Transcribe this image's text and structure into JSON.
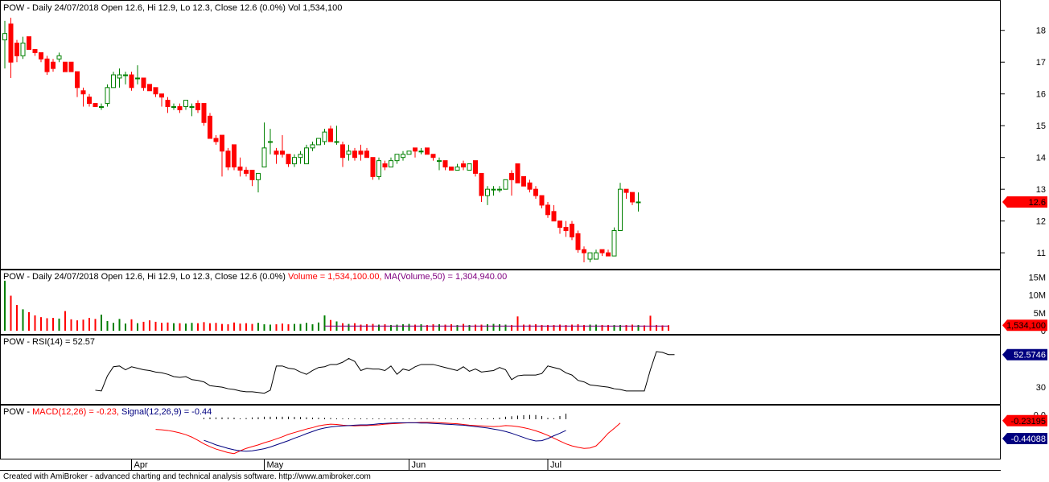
{
  "footer": "Created with AmiBroker - advanced charting and technical analysis software. http://www.amibroker.com",
  "colors": {
    "up": "#008000",
    "down": "#ff0000",
    "grid": "#c0c0c0",
    "volume_ma": "#800080",
    "rsi": "#000000",
    "macd": "#ff0000",
    "signal": "#000080",
    "price_badge": "#ff0000",
    "rsi_badge": "#000080"
  },
  "chart_data": [
    {
      "type": "candlestick",
      "title": "POW - Daily 24/07/2018 Open 12.6, Hi 12.9, Lo 12.3, Close 12.6 (0.0%) Vol 1,534,100",
      "ylim": [
        10.7,
        18.5
      ],
      "yticks": [
        "18",
        "17",
        "16",
        "15",
        "14",
        "13",
        "12",
        "11"
      ],
      "xticks": [
        "Apr",
        "May",
        "Jun",
        "Jul"
      ],
      "last_value_label": "12.6",
      "bars": [
        {
          "o": 17.7,
          "h": 18.3,
          "l": 16.8,
          "c": 17.9
        },
        {
          "o": 18.2,
          "h": 18.4,
          "l": 16.5,
          "c": 17.0
        },
        {
          "o": 17.6,
          "h": 17.7,
          "l": 17.0,
          "c": 17.2
        },
        {
          "o": 17.2,
          "h": 17.8,
          "l": 17.1,
          "c": 17.6
        },
        {
          "o": 17.8,
          "h": 17.8,
          "l": 17.4,
          "c": 17.4
        },
        {
          "o": 17.4,
          "h": 17.4,
          "l": 17.2,
          "c": 17.3
        },
        {
          "o": 17.3,
          "h": 17.3,
          "l": 17.0,
          "c": 17.1
        },
        {
          "o": 17.1,
          "h": 17.2,
          "l": 16.6,
          "c": 16.7
        },
        {
          "o": 17.0,
          "h": 17.1,
          "l": 16.7,
          "c": 16.8
        },
        {
          "o": 17.1,
          "h": 17.3,
          "l": 17.0,
          "c": 17.2
        },
        {
          "o": 17.0,
          "h": 17.0,
          "l": 16.7,
          "c": 16.7
        },
        {
          "o": 17.0,
          "h": 17.0,
          "l": 16.7,
          "c": 16.7
        },
        {
          "o": 16.7,
          "h": 16.7,
          "l": 15.9,
          "c": 16.2
        },
        {
          "o": 16.1,
          "h": 16.2,
          "l": 15.6,
          "c": 16.0
        },
        {
          "o": 15.9,
          "h": 16.0,
          "l": 15.6,
          "c": 15.7
        },
        {
          "o": 15.7,
          "h": 15.7,
          "l": 15.6,
          "c": 15.6
        },
        {
          "o": 15.6,
          "h": 15.7,
          "l": 15.5,
          "c": 15.6
        },
        {
          "o": 15.7,
          "h": 16.3,
          "l": 15.6,
          "c": 16.2
        },
        {
          "o": 16.2,
          "h": 16.7,
          "l": 16.2,
          "c": 16.6
        },
        {
          "o": 16.5,
          "h": 16.8,
          "l": 16.2,
          "c": 16.6
        },
        {
          "o": 16.6,
          "h": 16.7,
          "l": 16.3,
          "c": 16.6
        },
        {
          "o": 16.6,
          "h": 16.7,
          "l": 16.1,
          "c": 16.2
        },
        {
          "o": 16.5,
          "h": 16.9,
          "l": 16.3,
          "c": 16.5
        },
        {
          "o": 16.5,
          "h": 16.5,
          "l": 16.1,
          "c": 16.2
        },
        {
          "o": 16.3,
          "h": 16.3,
          "l": 16.1,
          "c": 16.1
        },
        {
          "o": 16.2,
          "h": 16.2,
          "l": 15.9,
          "c": 16.0
        },
        {
          "o": 16.0,
          "h": 16.0,
          "l": 15.6,
          "c": 15.9
        },
        {
          "o": 15.8,
          "h": 15.9,
          "l": 15.4,
          "c": 15.6
        },
        {
          "o": 15.6,
          "h": 15.7,
          "l": 15.5,
          "c": 15.6
        },
        {
          "o": 15.6,
          "h": 15.7,
          "l": 15.4,
          "c": 15.5
        },
        {
          "o": 15.6,
          "h": 15.8,
          "l": 15.5,
          "c": 15.8
        },
        {
          "o": 15.6,
          "h": 15.7,
          "l": 15.3,
          "c": 15.6
        },
        {
          "o": 15.7,
          "h": 15.8,
          "l": 15.4,
          "c": 15.5
        },
        {
          "o": 15.7,
          "h": 15.7,
          "l": 15.0,
          "c": 15.1
        },
        {
          "o": 15.3,
          "h": 15.4,
          "l": 14.6,
          "c": 14.6
        },
        {
          "o": 14.6,
          "h": 14.7,
          "l": 14.4,
          "c": 14.5
        },
        {
          "o": 14.7,
          "h": 14.7,
          "l": 13.4,
          "c": 14.2
        },
        {
          "o": 14.2,
          "h": 14.3,
          "l": 13.6,
          "c": 13.7
        },
        {
          "o": 14.4,
          "h": 14.4,
          "l": 13.6,
          "c": 13.7
        },
        {
          "o": 13.7,
          "h": 14.0,
          "l": 13.4,
          "c": 13.6
        },
        {
          "o": 13.6,
          "h": 13.7,
          "l": 13.4,
          "c": 13.5
        },
        {
          "o": 13.6,
          "h": 13.6,
          "l": 13.1,
          "c": 13.3
        },
        {
          "o": 13.3,
          "h": 13.5,
          "l": 12.9,
          "c": 13.5
        },
        {
          "o": 13.7,
          "h": 15.1,
          "l": 13.7,
          "c": 14.3
        },
        {
          "o": 14.5,
          "h": 14.9,
          "l": 14.1,
          "c": 14.5
        },
        {
          "o": 14.2,
          "h": 14.3,
          "l": 13.8,
          "c": 14.1
        },
        {
          "o": 14.2,
          "h": 14.7,
          "l": 14.0,
          "c": 14.1
        },
        {
          "o": 14.1,
          "h": 14.1,
          "l": 13.7,
          "c": 13.8
        },
        {
          "o": 13.8,
          "h": 14.1,
          "l": 13.7,
          "c": 14.0
        },
        {
          "o": 14.0,
          "h": 14.2,
          "l": 13.8,
          "c": 14.1
        },
        {
          "o": 13.8,
          "h": 14.4,
          "l": 13.8,
          "c": 14.3
        },
        {
          "o": 14.3,
          "h": 14.5,
          "l": 14.2,
          "c": 14.4
        },
        {
          "o": 14.4,
          "h": 14.6,
          "l": 14.4,
          "c": 14.6
        },
        {
          "o": 14.5,
          "h": 14.9,
          "l": 14.4,
          "c": 14.8
        },
        {
          "o": 14.9,
          "h": 15.0,
          "l": 14.5,
          "c": 14.5
        },
        {
          "o": 14.5,
          "h": 15.0,
          "l": 14.4,
          "c": 14.5
        },
        {
          "o": 14.4,
          "h": 14.5,
          "l": 13.7,
          "c": 14.0
        },
        {
          "o": 14.1,
          "h": 14.4,
          "l": 13.9,
          "c": 14.2
        },
        {
          "o": 14.2,
          "h": 14.3,
          "l": 13.9,
          "c": 14.0
        },
        {
          "o": 14.2,
          "h": 14.4,
          "l": 13.9,
          "c": 14.1
        },
        {
          "o": 14.2,
          "h": 14.3,
          "l": 14.0,
          "c": 14.0
        },
        {
          "o": 14.0,
          "h": 14.0,
          "l": 13.3,
          "c": 13.4
        },
        {
          "o": 13.4,
          "h": 14.0,
          "l": 13.3,
          "c": 13.9
        },
        {
          "o": 13.8,
          "h": 13.9,
          "l": 13.6,
          "c": 13.7
        },
        {
          "o": 13.7,
          "h": 14.0,
          "l": 13.7,
          "c": 13.9
        },
        {
          "o": 13.9,
          "h": 14.1,
          "l": 13.8,
          "c": 14.1
        },
        {
          "o": 14.0,
          "h": 14.2,
          "l": 13.9,
          "c": 14.1
        },
        {
          "o": 14.1,
          "h": 14.2,
          "l": 14.1,
          "c": 14.2
        },
        {
          "o": 14.3,
          "h": 14.3,
          "l": 14.0,
          "c": 14.2
        },
        {
          "o": 14.2,
          "h": 14.3,
          "l": 14.1,
          "c": 14.2
        },
        {
          "o": 14.3,
          "h": 14.3,
          "l": 14.1,
          "c": 14.1
        },
        {
          "o": 14.1,
          "h": 14.1,
          "l": 13.9,
          "c": 14.0
        },
        {
          "o": 13.9,
          "h": 14.0,
          "l": 13.6,
          "c": 13.9
        },
        {
          "o": 13.9,
          "h": 13.9,
          "l": 13.6,
          "c": 13.7
        },
        {
          "o": 13.7,
          "h": 13.7,
          "l": 13.6,
          "c": 13.6
        },
        {
          "o": 13.6,
          "h": 13.8,
          "l": 13.6,
          "c": 13.7
        },
        {
          "o": 13.8,
          "h": 13.9,
          "l": 13.6,
          "c": 13.7
        },
        {
          "o": 13.6,
          "h": 13.8,
          "l": 13.6,
          "c": 13.8
        },
        {
          "o": 13.9,
          "h": 13.9,
          "l": 13.4,
          "c": 13.5
        },
        {
          "o": 13.5,
          "h": 13.5,
          "l": 12.6,
          "c": 12.8
        },
        {
          "o": 12.8,
          "h": 13.1,
          "l": 12.5,
          "c": 13.0
        },
        {
          "o": 13.0,
          "h": 13.1,
          "l": 12.8,
          "c": 13.0
        },
        {
          "o": 13.0,
          "h": 13.1,
          "l": 12.9,
          "c": 13.0
        },
        {
          "o": 13.0,
          "h": 13.3,
          "l": 13.0,
          "c": 13.3
        },
        {
          "o": 13.5,
          "h": 13.6,
          "l": 12.8,
          "c": 13.3
        },
        {
          "o": 13.8,
          "h": 13.8,
          "l": 13.2,
          "c": 13.2
        },
        {
          "o": 13.4,
          "h": 13.4,
          "l": 13.1,
          "c": 13.1
        },
        {
          "o": 13.2,
          "h": 13.3,
          "l": 12.9,
          "c": 13.0
        },
        {
          "o": 13.0,
          "h": 13.1,
          "l": 12.7,
          "c": 12.8
        },
        {
          "o": 12.8,
          "h": 12.8,
          "l": 12.4,
          "c": 12.5
        },
        {
          "o": 12.5,
          "h": 12.6,
          "l": 12.1,
          "c": 12.2
        },
        {
          "o": 12.3,
          "h": 12.5,
          "l": 12.0,
          "c": 12.0
        },
        {
          "o": 12.0,
          "h": 12.0,
          "l": 11.6,
          "c": 11.8
        },
        {
          "o": 11.8,
          "h": 12.0,
          "l": 11.5,
          "c": 11.7
        },
        {
          "o": 11.9,
          "h": 12.0,
          "l": 11.4,
          "c": 11.5
        },
        {
          "o": 11.6,
          "h": 11.7,
          "l": 11.0,
          "c": 11.1
        },
        {
          "o": 11.1,
          "h": 11.2,
          "l": 10.7,
          "c": 11.0
        },
        {
          "o": 10.8,
          "h": 11.0,
          "l": 10.7,
          "c": 11.0
        },
        {
          "o": 10.8,
          "h": 11.1,
          "l": 10.8,
          "c": 11.0
        },
        {
          "o": 11.1,
          "h": 11.1,
          "l": 10.9,
          "c": 11.0
        },
        {
          "o": 11.0,
          "h": 11.1,
          "l": 10.9,
          "c": 10.9
        },
        {
          "o": 10.9,
          "h": 11.8,
          "l": 10.9,
          "c": 11.7
        },
        {
          "o": 11.7,
          "h": 13.2,
          "l": 11.7,
          "c": 13.0
        },
        {
          "o": 13.0,
          "h": 13.0,
          "l": 12.7,
          "c": 12.9
        },
        {
          "o": 12.9,
          "h": 12.9,
          "l": 12.5,
          "c": 12.6
        },
        {
          "o": 12.6,
          "h": 12.9,
          "l": 12.3,
          "c": 12.6
        }
      ]
    },
    {
      "type": "bar",
      "title_prefix": "POW - Daily 24/07/2018 Open 12.6, Hi 12.9, Lo 12.3, Close 12.6 (0.0%)",
      "volume_label": "Volume = 1,534,100.00,",
      "ma_label": "MA(Volume,50) = 1,304,940.00",
      "yticks": [
        "15M",
        "10M",
        "5M",
        "0"
      ],
      "ylim": [
        0,
        16000000
      ],
      "last_value_label": "1,534,100",
      "ma_value": 1304940,
      "volumes": [
        14000000,
        9800000,
        7200000,
        6000000,
        5200000,
        4300000,
        3800000,
        3500000,
        3600000,
        3400000,
        5500000,
        3200000,
        2900000,
        3100000,
        3600000,
        3300000,
        4500000,
        2700000,
        2200000,
        3300000,
        2000000,
        3200000,
        2100000,
        2500000,
        2900000,
        2500000,
        2200000,
        2300000,
        2100000,
        2100000,
        2000000,
        2200000,
        2100000,
        2400000,
        2100000,
        2200000,
        1900000,
        1800000,
        2300000,
        2000000,
        2100000,
        1900000,
        2200000,
        1800000,
        1700000,
        1800000,
        2000000,
        1800000,
        1900000,
        1900000,
        2200000,
        1800000,
        2300000,
        4300000,
        3000000,
        2600000,
        2100000,
        1900000,
        2100000,
        1700000,
        1800000,
        1900000,
        1700000,
        1800000,
        1600000,
        1700000,
        1800000,
        1900000,
        1700000,
        1800000,
        1600000,
        1800000,
        1800000,
        1700000,
        1800000,
        1600000,
        1900000,
        1600000,
        1700000,
        1700000,
        1800000,
        1900000,
        1800000,
        1700000,
        1600000,
        4000000,
        1700000,
        1700000,
        1800000,
        1600000,
        1600000,
        1600000,
        1700000,
        1600000,
        1700000,
        1800000,
        1600000,
        1700000,
        1700000,
        1600000,
        1600000,
        1600000,
        1600000,
        1600000,
        1700000,
        1600000,
        1500000,
        4200000,
        1600000,
        1500000,
        1534100
      ],
      "ma_start_index": 53
    },
    {
      "type": "line",
      "title": "POW - RSI(14) = 52.57",
      "yticks": [
        "30"
      ],
      "ylim": [
        10,
        95
      ],
      "last_value_label": "52.5746",
      "start_index": 15,
      "values": [
        26,
        25,
        45,
        57,
        58,
        53,
        57,
        55,
        53,
        52,
        50,
        49,
        47,
        44,
        43,
        44,
        40,
        39,
        37,
        32,
        31,
        30,
        28,
        27,
        25,
        24,
        24,
        23,
        22,
        26,
        58,
        58,
        55,
        54,
        50,
        47,
        52,
        56,
        57,
        60,
        60,
        63,
        68,
        64,
        52,
        55,
        54,
        54,
        52,
        58,
        47,
        54,
        52,
        57,
        60,
        60,
        60,
        58,
        56,
        54,
        52,
        57,
        51,
        54,
        50,
        51,
        52,
        56,
        53,
        40,
        45,
        46,
        46,
        46,
        48,
        58,
        56,
        54,
        49,
        46,
        39,
        37,
        33,
        32,
        31,
        30,
        28,
        27,
        25,
        25,
        25,
        25,
        53,
        77,
        76,
        73,
        73
      ]
    },
    {
      "type": "line",
      "title_prefix": "POW -",
      "macd_label": "MACD(12,26) = -0.23,",
      "signal_label": "Signal(12,26,9) = -0.44",
      "yticks": [
        "0.0"
      ],
      "ylim": [
        -1.22,
        0.2
      ],
      "macd_badge": "-0.23195",
      "signal_badge": "-0.44088",
      "macd_start": 25,
      "macd": [
        -0.41,
        -0.42,
        -0.44,
        -0.47,
        -0.51,
        -0.56,
        -0.63,
        -0.72,
        -0.82,
        -0.9,
        -0.97,
        -1.02,
        -1.07,
        -1.1,
        -1.02,
        -0.95,
        -0.9,
        -0.85,
        -0.79,
        -0.74,
        -0.68,
        -0.62,
        -0.55,
        -0.5,
        -0.45,
        -0.4,
        -0.36,
        -0.31,
        -0.28,
        -0.26,
        -0.27,
        -0.29,
        -0.3,
        -0.31,
        -0.3,
        -0.3,
        -0.29,
        -0.28,
        -0.26,
        -0.25,
        -0.24,
        -0.23,
        -0.22,
        -0.22,
        -0.21,
        -0.21,
        -0.21,
        -0.22,
        -0.23,
        -0.24,
        -0.25,
        -0.27,
        -0.29,
        -0.3,
        -0.31,
        -0.32,
        -0.33,
        -0.32,
        -0.3,
        -0.31,
        -0.33,
        -0.36,
        -0.4,
        -0.45,
        -0.51,
        -0.58,
        -0.66,
        -0.74,
        -0.82,
        -0.88,
        -0.92,
        -0.95,
        -0.94,
        -0.88,
        -0.71,
        -0.52,
        -0.38,
        -0.23
      ],
      "signal_start": 33,
      "signal": [
        -0.72,
        -0.78,
        -0.85,
        -0.9,
        -0.95,
        -0.99,
        -1.02,
        -1.03,
        -1.02,
        -0.99,
        -0.96,
        -0.91,
        -0.85,
        -0.79,
        -0.73,
        -0.66,
        -0.6,
        -0.53,
        -0.47,
        -0.41,
        -0.37,
        -0.34,
        -0.32,
        -0.31,
        -0.3,
        -0.29,
        -0.28,
        -0.28,
        -0.27,
        -0.25,
        -0.24,
        -0.23,
        -0.22,
        -0.22,
        -0.22,
        -0.22,
        -0.23,
        -0.23,
        -0.24,
        -0.25,
        -0.26,
        -0.27,
        -0.28,
        -0.29,
        -0.31,
        -0.33,
        -0.35,
        -0.37,
        -0.4,
        -0.43,
        -0.47,
        -0.52,
        -0.58,
        -0.64,
        -0.7,
        -0.74,
        -0.73,
        -0.67,
        -0.59,
        -0.52,
        -0.44
      ]
    }
  ]
}
